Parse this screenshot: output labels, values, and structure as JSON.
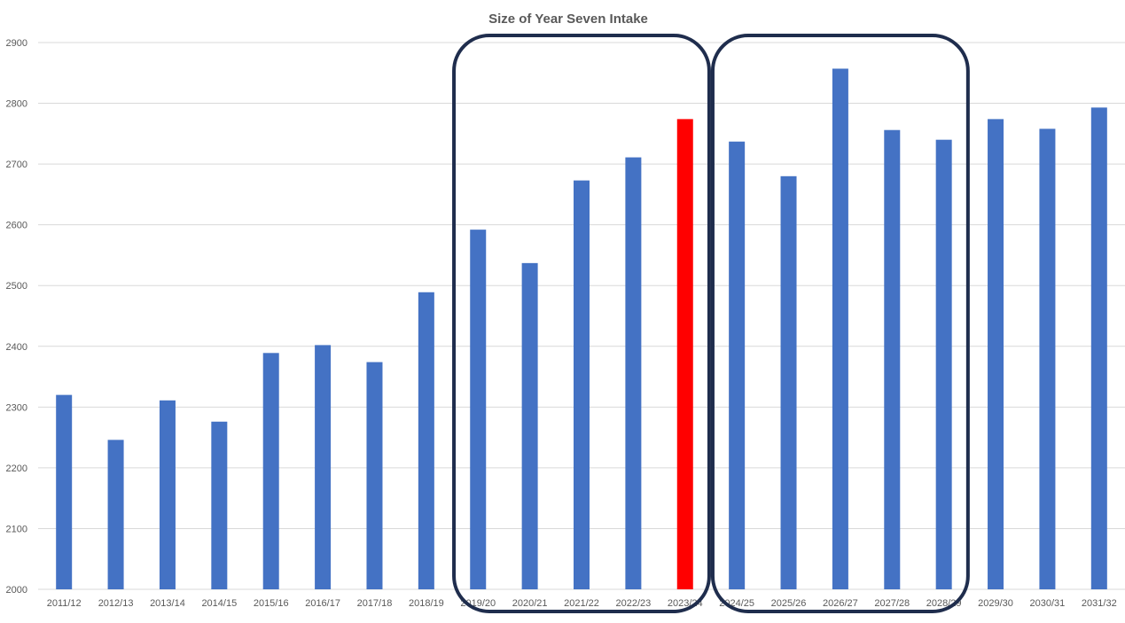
{
  "chart_data": {
    "type": "bar",
    "title": "Size of Year Seven Intake",
    "xlabel": "",
    "ylabel": "",
    "ylim": [
      2000,
      2900
    ],
    "yticks": [
      2000,
      2100,
      2200,
      2300,
      2400,
      2500,
      2600,
      2700,
      2800,
      2900
    ],
    "grid": true,
    "legend": "none",
    "categories": [
      "2011/12",
      "2012/13",
      "2013/14",
      "2014/15",
      "2015/16",
      "2016/17",
      "2017/18",
      "2018/19",
      "2019/20",
      "2020/21",
      "2021/22",
      "2022/23",
      "2023/24",
      "2024/25",
      "2025/26",
      "2026/27",
      "2027/28",
      "2028/29",
      "2029/30",
      "2030/31",
      "2031/32"
    ],
    "values": [
      2320,
      2246,
      2311,
      2276,
      2389,
      2402,
      2374,
      2489,
      2592,
      2537,
      2673,
      2711,
      2774,
      2737,
      2680,
      2857,
      2756,
      2740,
      2774,
      2758,
      2793
    ],
    "highlight": {
      "category": "2023/24",
      "color": "#ff0000"
    },
    "bar_color": "#4472c4",
    "annotations": [
      {
        "type": "rounded-box",
        "from": "2019/20",
        "to": "2023/24",
        "color": "#1f2d4d"
      },
      {
        "type": "rounded-box",
        "from": "2024/25",
        "to": "2028/29",
        "color": "#1f2d4d"
      }
    ]
  }
}
